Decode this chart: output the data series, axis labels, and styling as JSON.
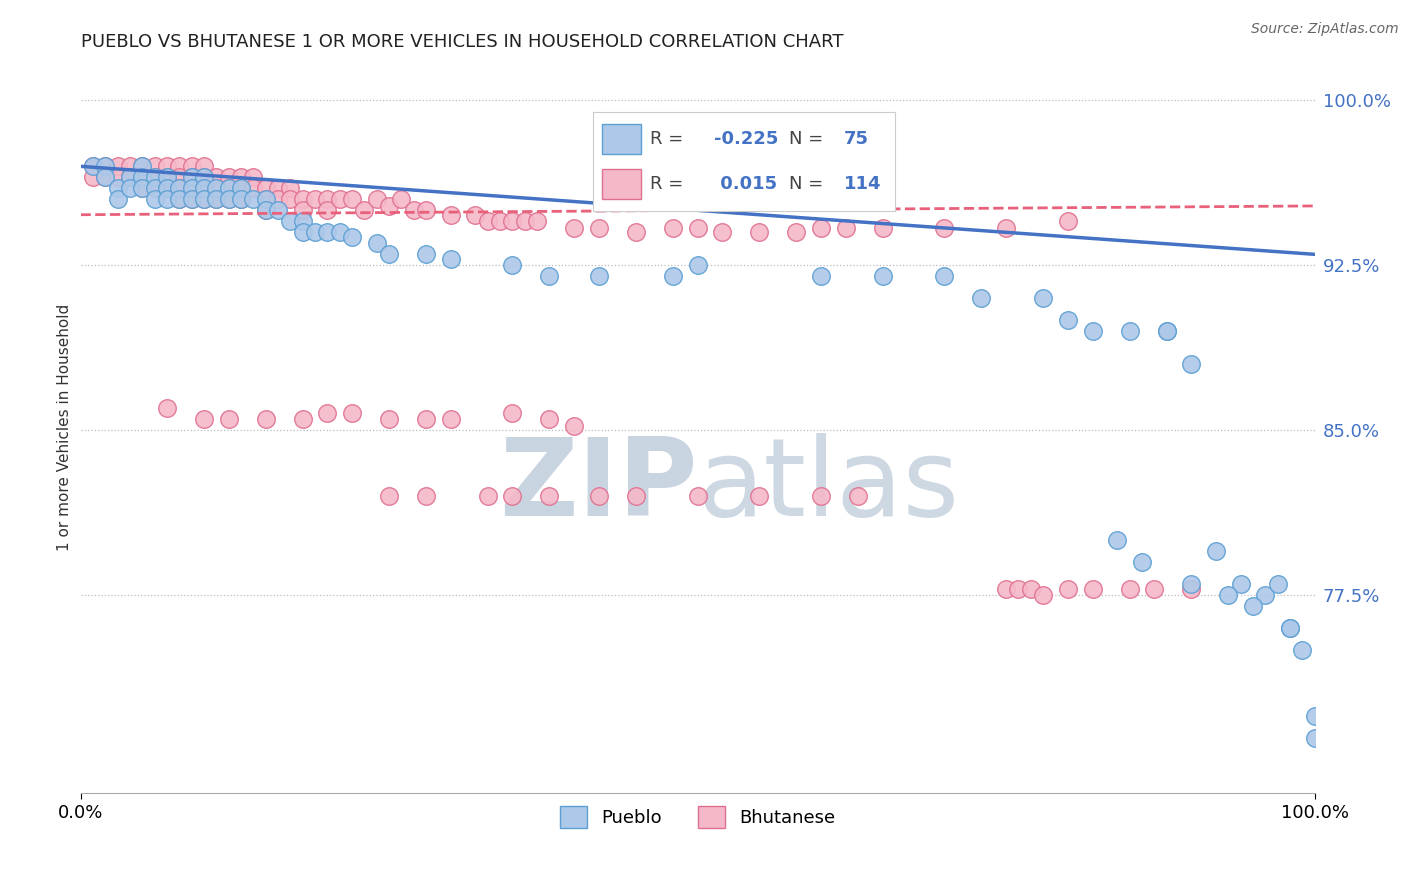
{
  "title": "PUEBLO VS BHUTANESE 1 OR MORE VEHICLES IN HOUSEHOLD CORRELATION CHART",
  "source_text": "Source: ZipAtlas.com",
  "ylabel": "1 or more Vehicles in Household",
  "xlim": [
    0.0,
    1.0
  ],
  "ylim": [
    0.685,
    1.018
  ],
  "yticks": [
    0.775,
    0.85,
    0.925,
    1.0
  ],
  "ytick_labels": [
    "77.5%",
    "85.0%",
    "92.5%",
    "100.0%"
  ],
  "xticks": [
    0.0,
    1.0
  ],
  "xtick_labels": [
    "0.0%",
    "100.0%"
  ],
  "pueblo_color": "#adc8e8",
  "pueblo_edge_color": "#5b9fd4",
  "bhutanese_color": "#f5b8c8",
  "bhutanese_edge_color": "#e07090",
  "blue_line_color": "#4472c4",
  "pink_line_color": "#e8607a",
  "label_color": "#4472c4",
  "watermark_color": "#c8d8e8",
  "R_pueblo": -0.225,
  "N_pueblo": 75,
  "R_bhutanese": 0.015,
  "N_bhutanese": 114,
  "pueblo_x": [
    0.01,
    0.02,
    0.02,
    0.03,
    0.03,
    0.04,
    0.04,
    0.05,
    0.05,
    0.05,
    0.06,
    0.06,
    0.06,
    0.07,
    0.07,
    0.07,
    0.08,
    0.08,
    0.09,
    0.09,
    0.09,
    0.1,
    0.1,
    0.1,
    0.11,
    0.11,
    0.12,
    0.12,
    0.13,
    0.13,
    0.14,
    0.15,
    0.15,
    0.16,
    0.17,
    0.18,
    0.18,
    0.19,
    0.2,
    0.21,
    0.22,
    0.24,
    0.25,
    0.28,
    0.3,
    0.35,
    0.38,
    0.42,
    0.48,
    0.5,
    0.6,
    0.65,
    0.7,
    0.73,
    0.78,
    0.8,
    0.82,
    0.85,
    0.88,
    0.88,
    0.9,
    0.92,
    0.94,
    0.96,
    0.97,
    0.98,
    0.99,
    1.0,
    0.84,
    0.86,
    0.9,
    0.93,
    0.95,
    0.98,
    1.0
  ],
  "pueblo_y": [
    0.97,
    0.97,
    0.965,
    0.96,
    0.955,
    0.965,
    0.96,
    0.97,
    0.965,
    0.96,
    0.965,
    0.96,
    0.955,
    0.965,
    0.96,
    0.955,
    0.96,
    0.955,
    0.965,
    0.96,
    0.955,
    0.965,
    0.96,
    0.955,
    0.96,
    0.955,
    0.96,
    0.955,
    0.96,
    0.955,
    0.955,
    0.955,
    0.95,
    0.95,
    0.945,
    0.945,
    0.94,
    0.94,
    0.94,
    0.94,
    0.938,
    0.935,
    0.93,
    0.93,
    0.928,
    0.925,
    0.92,
    0.92,
    0.92,
    0.925,
    0.92,
    0.92,
    0.92,
    0.91,
    0.91,
    0.9,
    0.895,
    0.895,
    0.895,
    0.895,
    0.88,
    0.795,
    0.78,
    0.775,
    0.78,
    0.76,
    0.75,
    0.72,
    0.8,
    0.79,
    0.78,
    0.775,
    0.77,
    0.76,
    0.71
  ],
  "bhutanese_x": [
    0.01,
    0.01,
    0.02,
    0.02,
    0.03,
    0.03,
    0.04,
    0.04,
    0.05,
    0.05,
    0.05,
    0.06,
    0.06,
    0.06,
    0.07,
    0.07,
    0.07,
    0.08,
    0.08,
    0.08,
    0.08,
    0.09,
    0.09,
    0.09,
    0.09,
    0.1,
    0.1,
    0.1,
    0.1,
    0.11,
    0.11,
    0.11,
    0.12,
    0.12,
    0.12,
    0.13,
    0.13,
    0.13,
    0.14,
    0.14,
    0.15,
    0.15,
    0.15,
    0.16,
    0.16,
    0.17,
    0.17,
    0.18,
    0.18,
    0.19,
    0.2,
    0.2,
    0.21,
    0.22,
    0.23,
    0.24,
    0.25,
    0.26,
    0.27,
    0.28,
    0.3,
    0.32,
    0.33,
    0.34,
    0.35,
    0.36,
    0.37,
    0.4,
    0.42,
    0.45,
    0.48,
    0.5,
    0.52,
    0.55,
    0.58,
    0.65,
    0.7,
    0.75,
    0.8,
    0.6,
    0.62,
    0.07,
    0.1,
    0.12,
    0.15,
    0.18,
    0.2,
    0.22,
    0.25,
    0.28,
    0.3,
    0.35,
    0.38,
    0.4,
    0.25,
    0.28,
    0.33,
    0.35,
    0.38,
    0.42,
    0.45,
    0.5,
    0.55,
    0.6,
    0.63,
    0.75,
    0.76,
    0.77,
    0.78,
    0.8,
    0.82,
    0.85,
    0.87,
    0.9
  ],
  "bhutanese_y": [
    0.97,
    0.965,
    0.97,
    0.965,
    0.97,
    0.965,
    0.97,
    0.965,
    0.97,
    0.965,
    0.96,
    0.97,
    0.965,
    0.96,
    0.97,
    0.965,
    0.96,
    0.97,
    0.965,
    0.96,
    0.955,
    0.97,
    0.965,
    0.96,
    0.955,
    0.97,
    0.965,
    0.96,
    0.955,
    0.965,
    0.96,
    0.955,
    0.965,
    0.96,
    0.955,
    0.965,
    0.96,
    0.955,
    0.965,
    0.96,
    0.96,
    0.955,
    0.95,
    0.96,
    0.955,
    0.96,
    0.955,
    0.955,
    0.95,
    0.955,
    0.955,
    0.95,
    0.955,
    0.955,
    0.95,
    0.955,
    0.952,
    0.955,
    0.95,
    0.95,
    0.948,
    0.948,
    0.945,
    0.945,
    0.945,
    0.945,
    0.945,
    0.942,
    0.942,
    0.94,
    0.942,
    0.942,
    0.94,
    0.94,
    0.94,
    0.942,
    0.942,
    0.942,
    0.945,
    0.942,
    0.942,
    0.86,
    0.855,
    0.855,
    0.855,
    0.855,
    0.858,
    0.858,
    0.855,
    0.855,
    0.855,
    0.858,
    0.855,
    0.852,
    0.82,
    0.82,
    0.82,
    0.82,
    0.82,
    0.82,
    0.82,
    0.82,
    0.82,
    0.82,
    0.82,
    0.778,
    0.778,
    0.778,
    0.775,
    0.778,
    0.778,
    0.778,
    0.778,
    0.778
  ]
}
